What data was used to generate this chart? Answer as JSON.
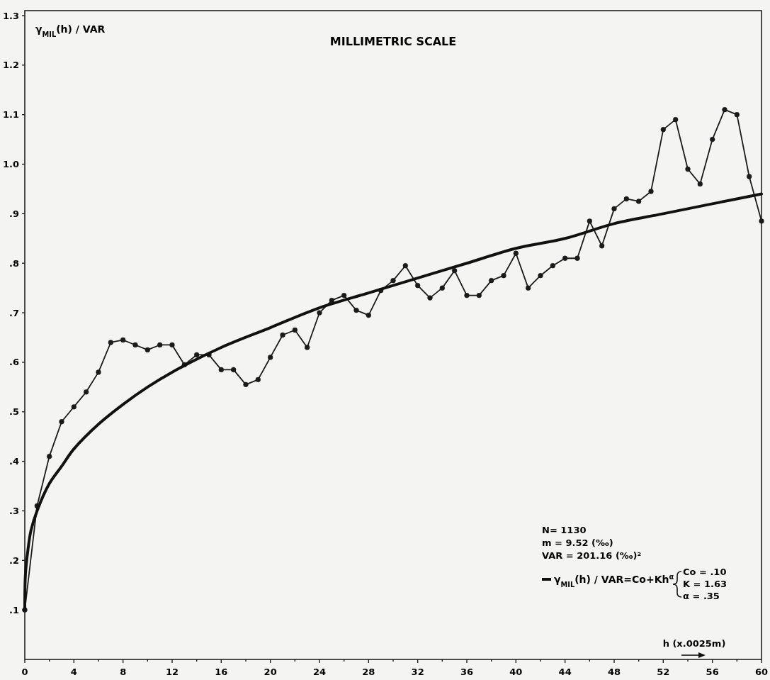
{
  "chart_data": {
    "type": "line",
    "title": "MILLIMETRIC SCALE",
    "xlabel": "h (x.0025m)",
    "ylabel": "γ$_{MIL}$(h) / VAR",
    "xlim": [
      0,
      60
    ],
    "ylim": [
      0,
      1.31
    ],
    "xticks": [
      0,
      {
        "value": 2,
        "label": null
      },
      4,
      {
        "value": 6,
        "label": null
      },
      8,
      {
        "value": 10,
        "label": null
      },
      12,
      {
        "value": 14,
        "label": null
      },
      16,
      {
        "value": 18,
        "label": null
      },
      20,
      {
        "value": 22,
        "label": null
      },
      24,
      {
        "value": 26,
        "label": null
      },
      28,
      {
        "value": 30,
        "label": null
      },
      32,
      {
        "value": 34,
        "label": null
      },
      36,
      {
        "value": 38,
        "label": null
      },
      40,
      {
        "value": 42,
        "label": null
      },
      44,
      {
        "value": 46,
        "label": null
      },
      48,
      {
        "value": 50,
        "label": null
      },
      52,
      {
        "value": 54,
        "label": null
      },
      56,
      {
        "value": 58,
        "label": null
      },
      60
    ],
    "yticks": [
      {
        "value": 0.1,
        "label": ".1"
      },
      {
        "value": 0.2,
        "label": ".2"
      },
      {
        "value": 0.3,
        "label": ".3"
      },
      {
        "value": 0.4,
        "label": ".4"
      },
      {
        "value": 0.5,
        "label": ".5"
      },
      {
        "value": 0.6,
        "label": ".6"
      },
      {
        "value": 0.7,
        "label": ".7"
      },
      {
        "value": 0.8,
        "label": ".8"
      },
      {
        "value": 0.9,
        "label": ".9"
      },
      {
        "value": 1.0,
        "label": "1.0"
      },
      {
        "value": 1.1,
        "label": "1.1"
      },
      {
        "value": 1.2,
        "label": "1.2"
      },
      {
        "value": 1.3,
        "label": "1.3"
      }
    ],
    "grid": false,
    "legend": "bottom right",
    "marker": "circle",
    "line_style": "solid",
    "series": [
      {
        "color": "#1a1a1a",
        "x": [
          0,
          1,
          2,
          3,
          4,
          5,
          6,
          7,
          8,
          9,
          10,
          11,
          12,
          13,
          14,
          15,
          16,
          17,
          18,
          19,
          20,
          21,
          22,
          23,
          24,
          25,
          26,
          27,
          28,
          29,
          30,
          31,
          32,
          33,
          34,
          35,
          36,
          37,
          38,
          39,
          40,
          41,
          42,
          43,
          44,
          45,
          46,
          47,
          48,
          49,
          50,
          51,
          52,
          53,
          54,
          55,
          56,
          57,
          58,
          59,
          60
        ],
        "values": [
          0.1,
          0.31,
          0.41,
          0.48,
          0.51,
          0.54,
          0.58,
          0.64,
          0.645,
          0.635,
          0.625,
          0.635,
          0.635,
          0.595,
          0.615,
          0.615,
          0.585,
          0.585,
          0.555,
          0.565,
          0.61,
          0.655,
          0.665,
          0.63,
          0.7,
          0.725,
          0.735,
          0.705,
          0.695,
          0.745,
          0.765,
          0.795,
          0.755,
          0.73,
          0.75,
          0.785,
          0.735,
          0.735,
          0.765,
          0.775,
          0.82,
          0.75,
          0.775,
          0.795,
          0.81,
          0.81,
          0.885,
          0.835,
          0.91,
          0.93,
          0.925,
          0.945,
          1.07,
          1.09,
          0.99,
          0.96,
          1.05,
          1.11,
          1.1,
          0.975,
          0.885
        ]
      },
      {
        "name": "γ$_{MIL}$(h) / VAR=Co+Kh$^{α}$",
        "type": "line",
        "marker": "none",
        "color": "#111111",
        "x": [
          0,
          0.05,
          0.25,
          0.5,
          1,
          2,
          3,
          4,
          6,
          8,
          10,
          12,
          16,
          20,
          24,
          28,
          32,
          36,
          40,
          44,
          48,
          52,
          56,
          60
        ],
        "values": [
          0.1,
          0.17,
          0.22,
          0.26,
          0.3,
          0.355,
          0.39,
          0.425,
          0.475,
          0.515,
          0.55,
          0.58,
          0.63,
          0.67,
          0.71,
          0.74,
          0.77,
          0.8,
          0.83,
          0.85,
          0.88,
          0.9,
          0.92,
          0.94
        ]
      }
    ],
    "annotations": [
      "N= 1130",
      "m = 9.52 (‰)",
      "VAR = 201.16 (‰)²",
      "Co = .10",
      "K = 1.63",
      "α = .35"
    ]
  }
}
